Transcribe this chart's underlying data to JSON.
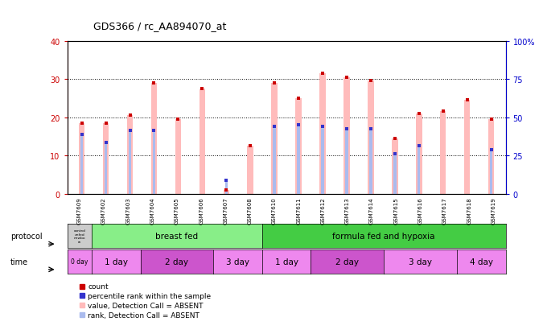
{
  "title": "GDS366 / rc_AA894070_at",
  "samples": [
    "GSM7609",
    "GSM7602",
    "GSM7603",
    "GSM7604",
    "GSM7605",
    "GSM7606",
    "GSM7607",
    "GSM7608",
    "GSM7610",
    "GSM7611",
    "GSM7612",
    "GSM7613",
    "GSM7614",
    "GSM7615",
    "GSM7616",
    "GSM7617",
    "GSM7618",
    "GSM7619"
  ],
  "bar_pink_values": [
    18.5,
    18.5,
    20.5,
    29.0,
    19.5,
    27.5,
    1.0,
    12.5,
    29.0,
    25.0,
    31.5,
    30.5,
    29.5,
    14.5,
    21.0,
    21.5,
    24.5,
    19.5
  ],
  "bar_blue_values": [
    15.5,
    13.5,
    16.5,
    16.5,
    0,
    0,
    3.5,
    0,
    17.5,
    18.0,
    17.5,
    17.0,
    17.0,
    10.5,
    12.5,
    0,
    0,
    11.5
  ],
  "ylim_left": [
    0,
    40
  ],
  "ylim_right": [
    0,
    100
  ],
  "yticks_left": [
    0,
    10,
    20,
    30,
    40
  ],
  "yticks_right": [
    0,
    25,
    50,
    75,
    100
  ],
  "ytick_labels_right": [
    "0",
    "25",
    "50",
    "75",
    "100%"
  ],
  "bar_pink_color": "#ffbbbb",
  "bar_blue_color": "#aabbee",
  "red_color": "#cc0000",
  "blue_color": "#3333cc",
  "axis_left_color": "#cc0000",
  "axis_right_color": "#0000cc",
  "background_color": "#ffffff",
  "legend_items": [
    "count",
    "percentile rank within the sample",
    "value, Detection Call = ABSENT",
    "rank, Detection Call = ABSENT"
  ],
  "legend_colors": [
    "#cc0000",
    "#3333cc",
    "#ffbbbb",
    "#aabbee"
  ],
  "proto_ctrl_color": "#cccccc",
  "proto_bf_color": "#88ee88",
  "proto_ff_color": "#44cc44",
  "time_light_color": "#ee88ee",
  "time_dark_color": "#cc55cc",
  "time_groups": [
    [
      "0 day",
      1
    ],
    [
      "1 day",
      2
    ],
    [
      "2 day",
      3
    ],
    [
      "3 day",
      2
    ],
    [
      "1 day",
      2
    ],
    [
      "2 day",
      3
    ],
    [
      "3 day",
      3
    ],
    [
      "4 day",
      2
    ]
  ],
  "time_dark_indices": [
    2,
    5
  ]
}
